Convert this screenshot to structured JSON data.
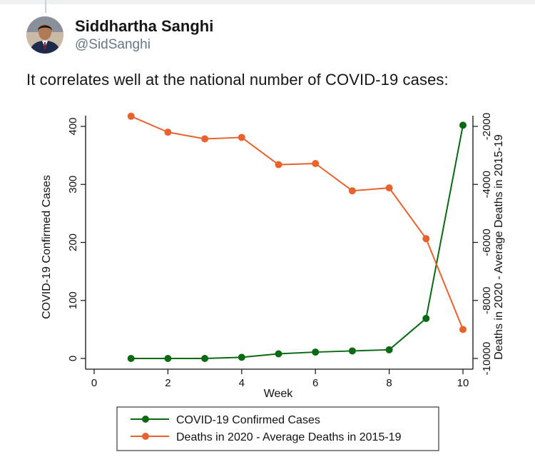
{
  "tweet": {
    "author_name": "Siddhartha Sanghi",
    "author_handle": "@SidSanghi",
    "text": "It correlates well at the national number of COVID-19 cases:"
  },
  "colors": {
    "green": "#0a6a12",
    "orange": "#e8622c",
    "axis": "#111111"
  },
  "chart_data": {
    "type": "line",
    "title": "",
    "xlabel": "Week",
    "ylabel": "COVID-19 Confirmed Cases",
    "y2label": "Deaths in 2020 - Average Deaths in 2015-19",
    "xlim": [
      0,
      10
    ],
    "ylim": [
      0,
      400
    ],
    "y2lim": [
      -10000,
      -2000
    ],
    "x_ticks": [
      0,
      2,
      4,
      6,
      8,
      10
    ],
    "y_ticks": [
      0,
      100,
      200,
      300,
      400
    ],
    "y2_ticks": [
      -10000,
      -8000,
      -6000,
      -4000,
      -2000
    ],
    "x": [
      1,
      2,
      3,
      4,
      5,
      6,
      7,
      8,
      9,
      10
    ],
    "series": [
      {
        "name": "COVID-19 Confirmed Cases",
        "axis": "left",
        "color": "#0a6a12",
        "values": [
          0,
          0,
          0,
          2,
          8,
          11,
          13,
          15,
          69,
          402
        ]
      },
      {
        "name": "Deaths in 2020 - Average Deaths in 2015-19",
        "axis": "right",
        "color": "#e8622c",
        "values": [
          -1650,
          -2200,
          -2430,
          -2380,
          -3320,
          -3280,
          -4220,
          -4120,
          -5870,
          -9000
        ]
      }
    ],
    "legend": "bottom"
  }
}
